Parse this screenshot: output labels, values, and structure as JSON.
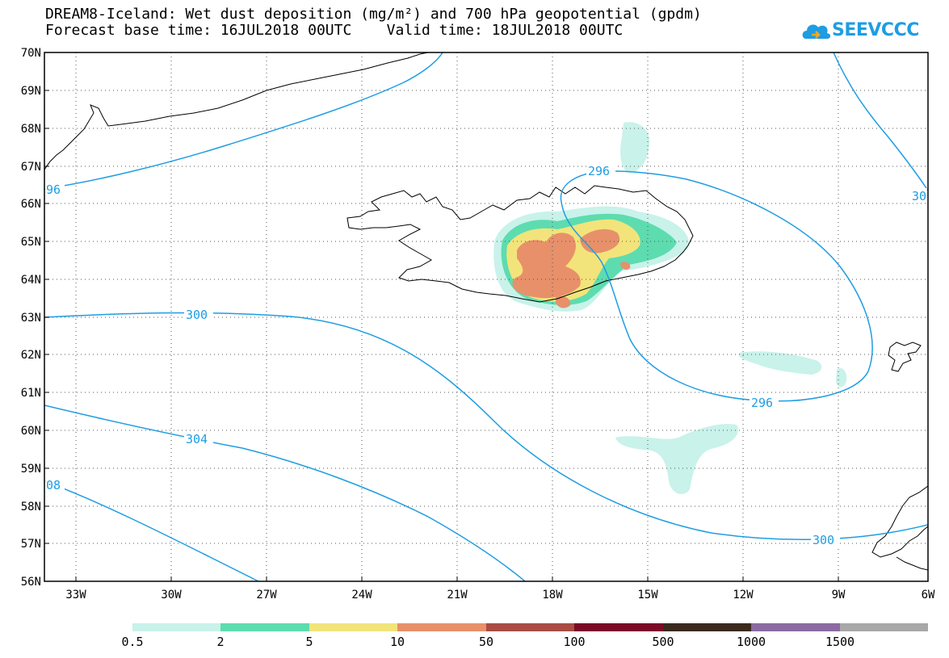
{
  "header": {
    "title_line1": "DREAM8-Iceland: Wet dust deposition (mg/m²) and 700 hPa geopotential (gpdm)",
    "title_line2": "Forecast base time: 16JUL2018 00UTC    Valid time: 18JUL2018 00UTC"
  },
  "logo": {
    "text": "SEEVCCC",
    "color": "#1e9de3"
  },
  "map": {
    "lon_range": [
      -34.5,
      -6
    ],
    "lat_range": [
      56,
      70
    ],
    "lat_ticks": [
      "70N",
      "69N",
      "68N",
      "67N",
      "66N",
      "65N",
      "64N",
      "63N",
      "62N",
      "61N",
      "60N",
      "59N",
      "58N",
      "57N",
      "56N"
    ],
    "lon_ticks": [
      "33W",
      "30W",
      "27W",
      "24W",
      "21W",
      "18W",
      "15W",
      "12W",
      "9W",
      "6W"
    ],
    "contour_color": "#1e9de3",
    "contour_labels": [
      "296",
      "296",
      "300",
      "304",
      "300",
      "96",
      "08",
      "30"
    ],
    "grid": "dotted"
  },
  "colorbar": {
    "labels": [
      "0.5",
      "2",
      "5",
      "10",
      "50",
      "100",
      "500",
      "1000",
      "1500"
    ],
    "colors": [
      "#c8f2ea",
      "#5ddcb0",
      "#f2e47a",
      "#e8906a",
      "#a84c44",
      "#7a0a28",
      "#3a2a1e",
      "#8a6aa0",
      "#a8a8a8"
    ]
  }
}
